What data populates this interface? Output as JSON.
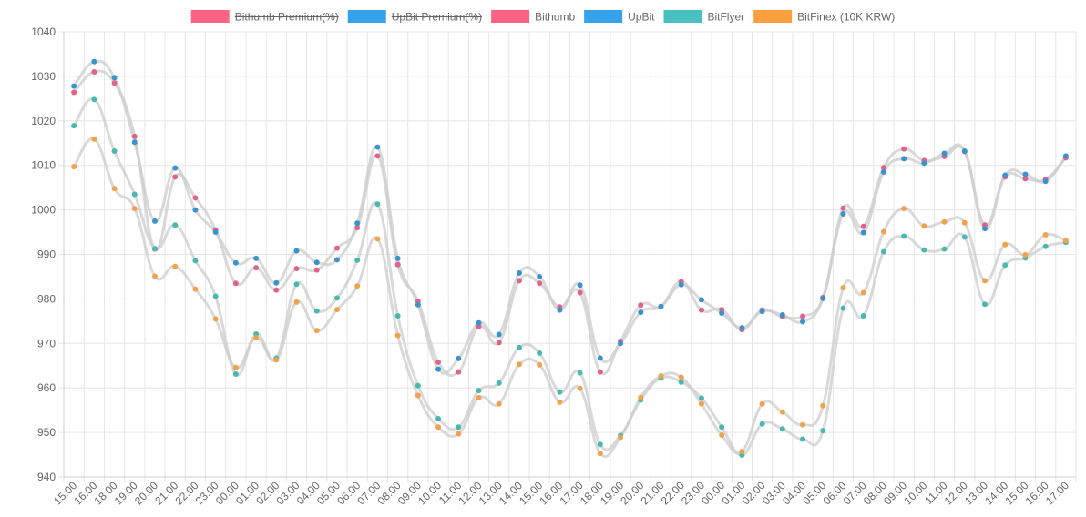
{
  "chart_data": {
    "type": "line",
    "title": "",
    "xlabel": "",
    "ylabel": "",
    "ylim": [
      940,
      1040
    ],
    "yticks": [
      940,
      950,
      960,
      970,
      980,
      990,
      1000,
      1010,
      1020,
      1030,
      1040
    ],
    "grid": true,
    "legend_position": "top",
    "categories": [
      "15:00",
      "16:00",
      "18:00",
      "19:00",
      "20:00",
      "21:00",
      "22:00",
      "23:00",
      "00:00",
      "01:00",
      "02:00",
      "03:00",
      "04:00",
      "05:00",
      "06:00",
      "07:00",
      "08:00",
      "09:00",
      "10:00",
      "11:00",
      "12:00",
      "13:00",
      "14:00",
      "15:00",
      "16:00",
      "17:00",
      "18:00",
      "19:00",
      "20:00",
      "21:00",
      "22:00",
      "23:00",
      "00:00",
      "01:00",
      "02:00",
      "03:00",
      "04:00",
      "05:00",
      "06:00",
      "07:00",
      "08:00",
      "09:00",
      "10:00",
      "11:00",
      "12:00",
      "13:00",
      "14:00",
      "15:00",
      "16:00",
      "17:00"
    ],
    "legend": [
      {
        "name": "Bithumb Premium(%)",
        "color": "#ff6384",
        "hidden": true
      },
      {
        "name": "UpBit Premium(%)",
        "color": "#36a2eb",
        "hidden": true
      },
      {
        "name": "Bithumb",
        "color": "#ff6384",
        "hidden": false
      },
      {
        "name": "UpBit",
        "color": "#36a2eb",
        "hidden": false
      },
      {
        "name": "BitFlyer",
        "color": "#4bc0c0",
        "hidden": false
      },
      {
        "name": "BitFinex (10K KRW)",
        "color": "#ff9f40",
        "hidden": false
      }
    ],
    "line_color": "#cccccc",
    "series": [
      {
        "name": "Bithumb",
        "color": "#e0638a",
        "values": [
          1026.4,
          1031.0,
          1028.5,
          1016.5,
          991.2,
          1007.4,
          1002.7,
          995.5,
          983.5,
          987.0,
          982.0,
          986.8,
          986.5,
          991.4,
          996.0,
          1012.1,
          987.7,
          979.5,
          965.8,
          963.6,
          973.8,
          970.2,
          984.1,
          983.5,
          978.2,
          981.4,
          963.6,
          970.5,
          978.6,
          978.3,
          983.9,
          977.5,
          977.6,
          973.1,
          977.5,
          976.0,
          976.1,
          980.3,
          1000.4,
          996.3,
          1009.5,
          1013.7,
          1011.1,
          1012.0,
          1013.1,
          996.6,
          1007.4,
          1007.0,
          1006.9,
          1011.7
        ]
      },
      {
        "name": "UpBit",
        "color": "#3b93cd",
        "values": [
          1027.8,
          1033.3,
          1029.7,
          1015.2,
          997.5,
          1009.4,
          1000.0,
          995.0,
          988.1,
          989.1,
          983.6,
          990.8,
          988.2,
          988.8,
          997.0,
          1014.1,
          989.1,
          978.7,
          964.2,
          966.6,
          974.6,
          972.0,
          985.8,
          985.0,
          977.5,
          983.1,
          966.7,
          970.0,
          977.0,
          978.3,
          983.2,
          979.8,
          976.8,
          973.5,
          977.2,
          976.4,
          974.9,
          980.1,
          999.1,
          994.9,
          1008.5,
          1011.5,
          1010.5,
          1012.7,
          1013.2,
          995.8,
          1007.8,
          1008.0,
          1006.4,
          1012.1
        ]
      },
      {
        "name": "BitFlyer",
        "color": "#4bb8b0",
        "values": [
          1018.9,
          1024.8,
          1013.2,
          1003.5,
          991.3,
          996.6,
          988.6,
          980.6,
          963.1,
          972.1,
          966.7,
          983.3,
          977.3,
          980.2,
          988.7,
          1001.3,
          976.2,
          960.5,
          953.1,
          951.2,
          959.4,
          961.1,
          969.1,
          967.8,
          959.1,
          963.4,
          947.3,
          949.3,
          957.3,
          962.2,
          961.3,
          957.7,
          951.2,
          944.9,
          951.9,
          950.8,
          948.5,
          950.4,
          977.9,
          976.2,
          990.6,
          994.1,
          991.0,
          991.2,
          993.9,
          978.8,
          987.6,
          989.2,
          991.8,
          992.7
        ]
      },
      {
        "name": "BitFinex (10K KRW)",
        "color": "#f0a24d",
        "values": [
          1009.7,
          1015.9,
          1004.8,
          1000.3,
          985.1,
          987.3,
          982.2,
          975.5,
          964.6,
          971.3,
          966.3,
          979.3,
          972.9,
          977.6,
          982.9,
          993.5,
          971.8,
          958.3,
          951.2,
          949.7,
          957.8,
          956.4,
          965.3,
          965.2,
          956.8,
          959.9,
          945.3,
          948.9,
          957.9,
          962.7,
          962.4,
          956.4,
          949.4,
          945.7,
          956.4,
          954.6,
          951.7,
          956.0,
          982.5,
          981.4,
          995.1,
          1000.3,
          996.4,
          997.3,
          997.1,
          984.1,
          992.2,
          989.9,
          994.4,
          993.1
        ]
      }
    ]
  }
}
